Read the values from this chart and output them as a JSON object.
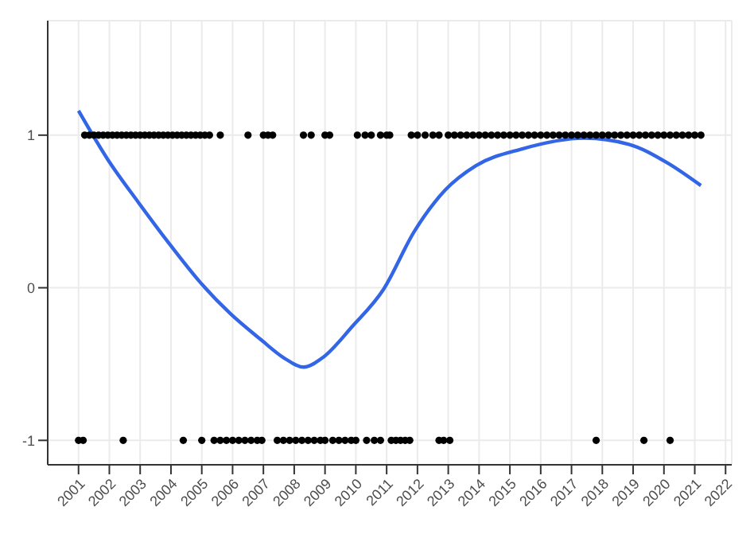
{
  "chart_data": {
    "type": "scatter",
    "marker": "circle",
    "grid": true,
    "legend": false,
    "xlim": [
      2000,
      2022.2
    ],
    "xticks": [
      2001,
      2002,
      2003,
      2004,
      2005,
      2006,
      2007,
      2008,
      2009,
      2010,
      2011,
      2012,
      2013,
      2014,
      2015,
      2016,
      2017,
      2018,
      2019,
      2020,
      2021,
      2022
    ],
    "ylim": [
      -1.16,
      1.75
    ],
    "yticks": [
      -1,
      0,
      1
    ],
    "series": [
      {
        "color": "#000000",
        "x": [
          2001.2,
          2001.35,
          2001.5,
          2001.65,
          2001.8,
          2001.95,
          2002.1,
          2002.25,
          2002.4,
          2002.55,
          2002.7,
          2002.85,
          2003.0,
          2003.15,
          2003.3,
          2003.45,
          2003.6,
          2003.75,
          2003.9,
          2004.05,
          2004.2,
          2004.35,
          2004.5,
          2004.65,
          2004.8,
          2004.95,
          2005.1,
          2005.25,
          2005.6,
          2006.5,
          2007.0,
          2007.15,
          2007.3,
          2008.3,
          2008.55,
          2009.0,
          2009.15,
          2010.05,
          2010.3,
          2010.5,
          2010.8,
          2011.0,
          2011.1,
          2011.8,
          2012.0,
          2012.25,
          2012.5,
          2012.7,
          2013.0,
          2013.2,
          2013.4,
          2013.6,
          2013.8,
          2014.0,
          2014.2,
          2014.4,
          2014.6,
          2014.8,
          2015.0,
          2015.2,
          2015.4,
          2015.6,
          2015.8,
          2016.0,
          2016.2,
          2016.4,
          2016.6,
          2016.8,
          2017.0,
          2017.2,
          2017.4,
          2017.6,
          2017.8,
          2018.0,
          2018.2,
          2018.4,
          2018.6,
          2018.8,
          2019.0,
          2019.2,
          2019.4,
          2019.6,
          2019.8,
          2020.0,
          2020.2,
          2020.4,
          2020.6,
          2020.8,
          2021.0,
          2021.2
        ],
        "values": [
          1,
          1,
          1,
          1,
          1,
          1,
          1,
          1,
          1,
          1,
          1,
          1,
          1,
          1,
          1,
          1,
          1,
          1,
          1,
          1,
          1,
          1,
          1,
          1,
          1,
          1,
          1,
          1,
          1,
          1,
          1,
          1,
          1,
          1,
          1,
          1,
          1,
          1,
          1,
          1,
          1,
          1,
          1,
          1,
          1,
          1,
          1,
          1,
          1,
          1,
          1,
          1,
          1,
          1,
          1,
          1,
          1,
          1,
          1,
          1,
          1,
          1,
          1,
          1,
          1,
          1,
          1,
          1,
          1,
          1,
          1,
          1,
          1,
          1,
          1,
          1,
          1,
          1,
          1,
          1,
          1,
          1,
          1,
          1,
          1,
          1,
          1,
          1,
          1,
          1
        ]
      },
      {
        "color": "#000000",
        "x": [
          2001.0,
          2001.15,
          2002.45,
          2004.4,
          2005.0,
          2005.4,
          2005.6,
          2005.8,
          2006.0,
          2006.2,
          2006.4,
          2006.6,
          2006.8,
          2006.95,
          2007.45,
          2007.65,
          2007.85,
          2008.05,
          2008.25,
          2008.45,
          2008.65,
          2008.85,
          2009.0,
          2009.25,
          2009.45,
          2009.65,
          2009.85,
          2010.0,
          2010.35,
          2010.6,
          2010.8,
          2011.15,
          2011.3,
          2011.45,
          2011.6,
          2011.75,
          2012.7,
          2012.85,
          2013.05,
          2017.8,
          2019.35,
          2020.2
        ],
        "values": [
          -1,
          -1,
          -1,
          -1,
          -1,
          -1,
          -1,
          -1,
          -1,
          -1,
          -1,
          -1,
          -1,
          -1,
          -1,
          -1,
          -1,
          -1,
          -1,
          -1,
          -1,
          -1,
          -1,
          -1,
          -1,
          -1,
          -1,
          -1,
          -1,
          -1,
          -1,
          -1,
          -1,
          -1,
          -1,
          -1,
          -1,
          -1,
          -1,
          -1,
          -1,
          -1
        ]
      },
      {
        "type": "line",
        "color": "#3366e6",
        "line_style": "solid",
        "marker": "none",
        "x": [
          2001.0,
          2001.95,
          2002.94,
          2003.94,
          2004.93,
          2005.93,
          2006.92,
          2007.67,
          2008.31,
          2008.91,
          2009.9,
          2010.9,
          2011.9,
          2012.9,
          2013.9,
          2015.4,
          2017.4,
          2018.86,
          2020.1,
          2021.2
        ],
        "values": [
          1.16,
          0.84,
          0.56,
          0.29,
          0.04,
          -0.17,
          -0.34,
          -0.46,
          -0.52,
          -0.46,
          -0.25,
          -0.01,
          0.37,
          0.64,
          0.8,
          0.91,
          0.98,
          0.94,
          0.82,
          0.67
        ]
      }
    ]
  }
}
